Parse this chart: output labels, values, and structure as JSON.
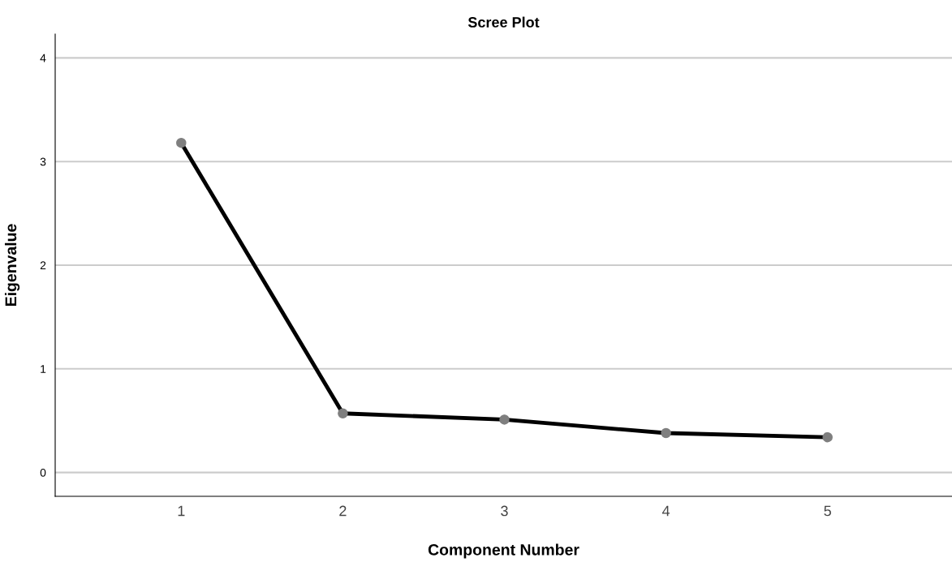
{
  "chart_data": {
    "type": "line",
    "title": "Scree Plot",
    "xlabel": "Component Number",
    "ylabel": "Eigenvalue",
    "categories": [
      "1",
      "2",
      "3",
      "4",
      "5"
    ],
    "series": [
      {
        "color": "#000000",
        "values": [
          3.18,
          0.57,
          0.51,
          0.38,
          0.34
        ]
      }
    ],
    "marker": "circle",
    "line_style": "solid",
    "grid": "y",
    "ylim": [
      -0.23,
      4.23
    ],
    "yticks": [
      0,
      1,
      2,
      3,
      4
    ]
  }
}
